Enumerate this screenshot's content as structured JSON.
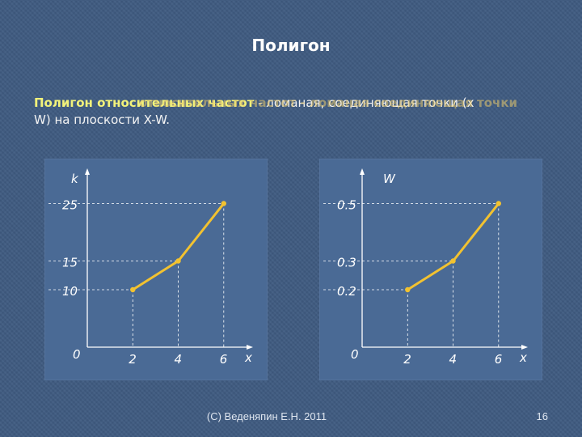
{
  "slide": {
    "title": "Полигон",
    "definition_term": "Полигон относительных частот",
    "definition_rest": " - ломаная, соединяющая точки (x",
    "definition_overlap": "относительных частот - ломаная соединяющая точки",
    "definition_line2": "W) на плоскости X-W.",
    "footer": "(С) Веденяпин Е.Н. 2011",
    "page_number": "16"
  },
  "colors": {
    "line": "#f2c230",
    "point": "#f2c230",
    "axes": "#ffffff",
    "chart_bg": "#4a6a95"
  },
  "chart_data": [
    {
      "type": "line",
      "x": [
        2,
        4,
        6
      ],
      "y": [
        10,
        15,
        25
      ],
      "xlabel": "x",
      "ylabel": "k",
      "xticks": [
        "0",
        "2",
        "4",
        "6"
      ],
      "yticks": [
        "10",
        "15",
        "25"
      ],
      "xlim": [
        0,
        7.5
      ],
      "ylim": [
        0,
        30
      ]
    },
    {
      "type": "line",
      "x": [
        2,
        4,
        6
      ],
      "y": [
        0.2,
        0.3,
        0.5
      ],
      "xlabel": "x",
      "ylabel": "W",
      "xticks": [
        "0",
        "2",
        "4",
        "6"
      ],
      "yticks": [
        "0.2",
        "0.3",
        "0.5"
      ],
      "xlim": [
        0,
        7.5
      ],
      "ylim": [
        0,
        0.6
      ]
    }
  ]
}
